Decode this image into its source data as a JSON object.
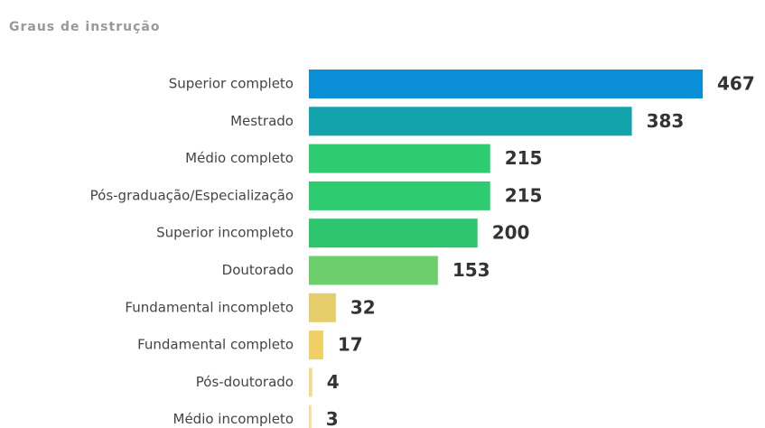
{
  "chart_data": {
    "type": "bar",
    "orientation": "horizontal",
    "title": "Graus de instrução",
    "categories": [
      "Superior completo",
      "Mestrado",
      "Médio completo",
      "Pós-graduação/Especialização",
      "Superior incompleto",
      "Doutorado",
      "Fundamental incompleto",
      "Fundamental completo",
      "Pós-doutorado",
      "Médio incompleto"
    ],
    "values": [
      467,
      383,
      215,
      215,
      200,
      153,
      32,
      17,
      4,
      3
    ],
    "colors": [
      "#0a8fd6",
      "#12a3ad",
      "#2ecc71",
      "#2ecc71",
      "#2ec56f",
      "#6ccf6c",
      "#e4cd6a",
      "#f0cf65",
      "#f5d98a",
      "#f7dd95"
    ]
  }
}
